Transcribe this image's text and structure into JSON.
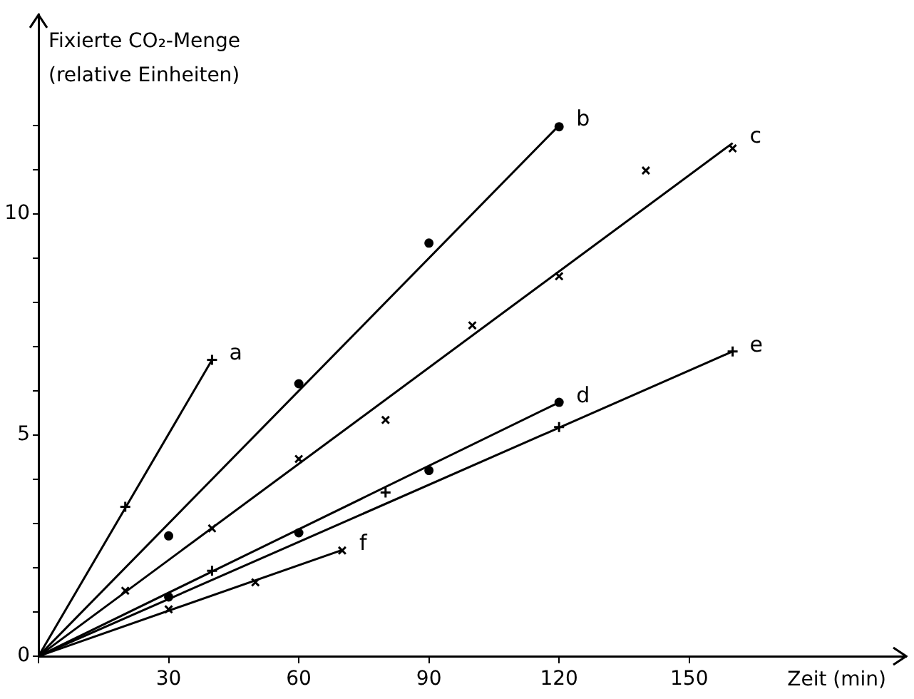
{
  "chart_data": {
    "type": "line",
    "xlabel": "Zeit (min)",
    "ylabel": "Fixierte CO₂-Menge\n(relative Einheiten)",
    "xlim": [
      0,
      200
    ],
    "ylim": [
      0,
      14.5
    ],
    "xticks": [
      {
        "value": 0,
        "label": null
      },
      30,
      60,
      90,
      120,
      150
    ],
    "yticks": [
      0,
      {
        "value": 1,
        "label": null
      },
      {
        "value": 2,
        "label": null
      },
      {
        "value": 3,
        "label": null
      },
      {
        "value": 4,
        "label": null
      },
      5,
      {
        "value": 6,
        "label": null
      },
      {
        "value": 7,
        "label": null
      },
      {
        "value": 8,
        "label": null
      },
      {
        "value": 9,
        "label": null
      },
      10,
      {
        "value": 11,
        "label": null
      },
      {
        "value": 12,
        "label": null
      }
    ],
    "grid": false,
    "legend": false,
    "series": [
      {
        "name": "a",
        "color": "#000000",
        "marker": "none",
        "x": [
          0,
          40
        ],
        "values": [
          0,
          6.7
        ]
      },
      {
        "type": "scatter",
        "color": "#000000",
        "marker": "cross",
        "x": [
          20,
          40
        ],
        "values": [
          3.38,
          6.7
        ]
      },
      {
        "name": "b",
        "color": "#000000",
        "marker": "none",
        "x": [
          0,
          120
        ],
        "values": [
          0,
          12
        ]
      },
      {
        "type": "scatter",
        "color": "#000000",
        "marker": "circle",
        "x": [
          30,
          60,
          90,
          120
        ],
        "values": [
          2.72,
          6.16,
          9.34,
          11.97
        ]
      },
      {
        "name": "c",
        "color": "#000000",
        "marker": "none",
        "x": [
          0,
          160
        ],
        "values": [
          0,
          11.6
        ]
      },
      {
        "type": "scatter",
        "color": "#000000",
        "marker": "x",
        "x": [
          20,
          40,
          60,
          80,
          100,
          120,
          140,
          160
        ],
        "values": [
          1.48,
          2.89,
          4.46,
          5.34,
          7.48,
          8.59,
          10.98,
          11.48
        ]
      },
      {
        "name": "d",
        "color": "#000000",
        "marker": "none",
        "x": [
          0,
          120
        ],
        "values": [
          0,
          5.74
        ]
      },
      {
        "type": "scatter",
        "color": "#000000",
        "marker": "circle",
        "x": [
          30,
          60,
          90,
          120
        ],
        "values": [
          1.34,
          2.79,
          4.2,
          5.74
        ]
      },
      {
        "name": "e",
        "color": "#000000",
        "marker": "none",
        "x": [
          0,
          160
        ],
        "values": [
          0,
          6.89
        ]
      },
      {
        "type": "scatter",
        "color": "#000000",
        "marker": "cross",
        "x": [
          40,
          80,
          120,
          160
        ],
        "values": [
          1.93,
          3.7,
          5.18,
          6.89
        ]
      },
      {
        "name": "f",
        "color": "#000000",
        "marker": "none",
        "x": [
          0,
          70
        ],
        "values": [
          0,
          2.4
        ]
      },
      {
        "type": "scatter",
        "color": "#000000",
        "marker": "x",
        "x": [
          30,
          50,
          70
        ],
        "values": [
          1.06,
          1.67,
          2.39
        ]
      }
    ]
  }
}
